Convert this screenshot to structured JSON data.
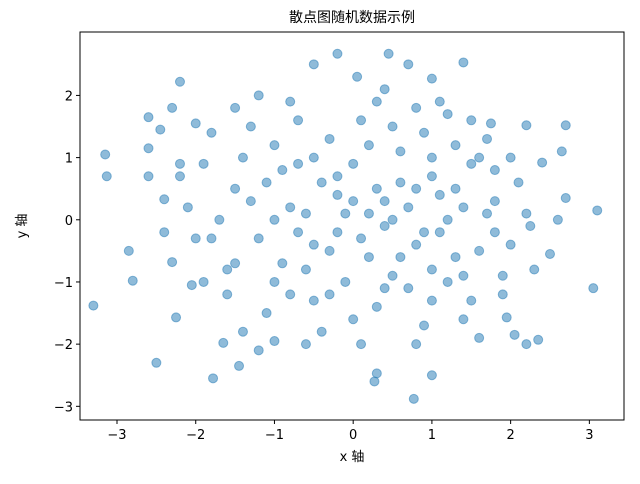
{
  "chart_data": {
    "type": "scatter",
    "title": "散点图随机数据示例",
    "x_label": "x 轴",
    "y_label": "y 轴",
    "series": [
      {
        "color": "#1f77b4",
        "opacity": 0.5,
        "x": [
          -3.3,
          -3.15,
          -3.13,
          -2.85,
          -2.8,
          -2.6,
          -2.6,
          -2.45,
          -2.5,
          -2.4,
          -2.3,
          -2.2,
          -2.25,
          -1.78,
          -0.2,
          0.45,
          0.7,
          1.4,
          0.3,
          0.27,
          1.0,
          0.77,
          2.7,
          3.1,
          3.05,
          2.65,
          2.4,
          2.2,
          2.2,
          2.35,
          1.95,
          -1.65,
          -1.45,
          -1.0,
          -0.5,
          0.05,
          1.0,
          -2.0,
          -2.6,
          -2.2,
          2.7,
          2.5,
          2.05,
          2.6,
          2.25,
          -2.3,
          -2.05,
          1.75,
          -1.5,
          -1.5,
          -1.2,
          -1,
          -0.8,
          -0.6,
          -0.4,
          -0.2,
          0,
          0.2,
          0.4,
          0.6,
          0.8,
          1,
          1.2,
          1.4,
          1.6,
          1.8,
          -1.8,
          -1.6,
          -1.4,
          -1.1,
          -0.9,
          -0.7,
          -0.5,
          -0.3,
          -0.1,
          0.1,
          0.3,
          0.5,
          0.7,
          0.9,
          1.1,
          1.3,
          1.5,
          1.7,
          1.9,
          -2,
          -1.9,
          -1.3,
          -1.2,
          -0.9,
          -0.8,
          -0.6,
          -0.4,
          -0.2,
          0,
          0.2,
          0.3,
          0.5,
          0.6,
          0.8,
          0.9,
          1.1,
          1.2,
          1.3,
          1.5,
          1.6,
          1.8,
          2,
          2.1,
          -2.1,
          -1.7,
          -1.5,
          -1.3,
          -1,
          -0.7,
          -0.5,
          -0.3,
          -0.1,
          0.1,
          0.3,
          0.4,
          0.7,
          0.9,
          1,
          1.2,
          1.4,
          1.7,
          1.9,
          2.2,
          -1.8,
          -1.6,
          -1.1,
          -0.8,
          -0.5,
          -0.2,
          0,
          0.2,
          0.4,
          0.6,
          0.8,
          1,
          1.3,
          1.5,
          1.8,
          2,
          -1.9,
          -1.4,
          -1,
          -0.7,
          -0.3,
          0.1,
          0.5,
          0.8,
          1.1,
          1.6,
          2.3,
          -2.4,
          -2.2,
          -1.2,
          -0.6,
          0.4,
          1,
          1.4
        ],
        "values": [
          -1.38,
          1.05,
          0.7,
          -0.5,
          -0.98,
          1.65,
          1.15,
          1.45,
          -2.3,
          0.33,
          1.8,
          2.22,
          -1.57,
          -2.55,
          2.67,
          2.67,
          2.5,
          2.53,
          -2.47,
          -2.6,
          -2.5,
          -2.88,
          1.52,
          0.15,
          -1.1,
          1.1,
          0.92,
          1.52,
          -2,
          -1.93,
          -1.57,
          -1.98,
          -2.35,
          -1.95,
          2.5,
          2.3,
          2.27,
          1.55,
          0.7,
          0.7,
          0.35,
          -0.55,
          -1.85,
          0,
          -0.1,
          -0.68,
          -1.05,
          1.55,
          1.8,
          0.5,
          -0.3,
          1.2,
          0.2,
          -0.8,
          0.6,
          -0.2,
          0.9,
          -0.6,
          0.3,
          1.1,
          -0.4,
          0.7,
          -1,
          0.2,
          -0.5,
          0.8,
          -0.3,
          -1.2,
          1,
          -1.5,
          0.8,
          1.6,
          -1.3,
          1.3,
          -1,
          1.6,
          -1.4,
          0,
          -1.1,
          1.4,
          -0.2,
          1.2,
          -1.3,
          0.1,
          -0.9,
          -0.3,
          0.9,
          0.3,
          -2.1,
          -0.7,
          1.9,
          0.1,
          -1.8,
          0.4,
          -1.6,
          0.1,
          1.9,
          -0.9,
          0.6,
          1.8,
          -1.7,
          0.4,
          1.7,
          -0.6,
          0.9,
          -1.9,
          0.3,
          -0.4,
          0.6,
          0.2,
          0,
          -0.7,
          1.5,
          0,
          -0.2,
          1,
          -0.5,
          0.1,
          -0.3,
          0.5,
          -0.1,
          0.2,
          -0.2,
          -0.8,
          0,
          -1.6,
          1.3,
          -1.2,
          0.1,
          1.4,
          -0.8,
          0.6,
          -1.2,
          -0.4,
          0.7,
          0.3,
          1.2,
          -1.1,
          -0.6,
          0.5,
          1,
          0.5,
          1.6,
          -0.2,
          1,
          -1,
          -1.8,
          -1,
          0.9,
          -1.2,
          -2,
          1.5,
          -2,
          1.9,
          1,
          -0.8,
          -0.2,
          0.9,
          2,
          -2,
          2.1,
          -1.3,
          -0.9
        ]
      }
    ],
    "xlim": [
      -3.47,
      3.44
    ],
    "ylim": [
      -3.22,
      3.02
    ],
    "xticks": [
      {
        "value": -3,
        "label": "−3"
      },
      {
        "value": -2,
        "label": "−2"
      },
      {
        "value": -1,
        "label": "−1"
      },
      0,
      1,
      2,
      3
    ],
    "yticks": [
      {
        "value": -3,
        "label": "−3"
      },
      {
        "value": -2,
        "label": "−2"
      },
      {
        "value": -1,
        "label": "−1"
      },
      0,
      1,
      2
    ]
  }
}
